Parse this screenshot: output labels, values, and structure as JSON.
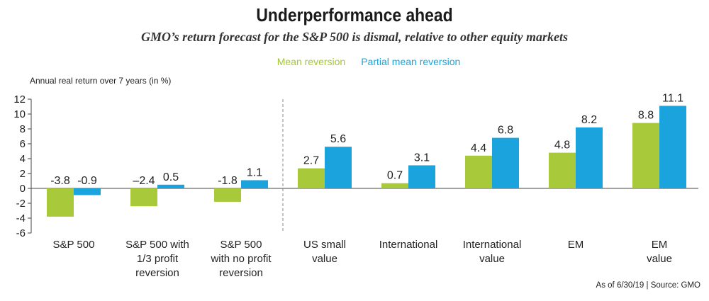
{
  "title": "Underperformance ahead",
  "subtitle": "GMO’s return forecast for the S&P 500 is dismal, relative to other equity markets",
  "legend": {
    "series1": "Mean reversion",
    "series2": "Partial mean reversion"
  },
  "ylabel": "Annual real return over 7 years (in %)",
  "footer": "As of 6/30/19 | Source: GMO",
  "colors": {
    "series1": "#a8c93a",
    "series2": "#1aa3dd",
    "axis": "#444444",
    "divider": "#888888"
  },
  "chart_data": {
    "type": "bar",
    "categories": [
      [
        "S&P 500"
      ],
      [
        "S&P 500 with",
        "1/3 profit",
        "reversion"
      ],
      [
        "S&P 500",
        "with no profit",
        "reversion"
      ],
      [
        "US small",
        "value"
      ],
      [
        "International"
      ],
      [
        "International",
        "value"
      ],
      [
        "EM"
      ],
      [
        "EM",
        "value"
      ]
    ],
    "series": [
      {
        "name": "Mean reversion",
        "values": [
          -3.8,
          -2.4,
          -1.8,
          2.7,
          0.7,
          4.4,
          4.8,
          8.8
        ],
        "labels": [
          "-3.8",
          "–2.4",
          "-1.8",
          "2.7",
          "0.7",
          "4.4",
          "4.8",
          "8.8"
        ]
      },
      {
        "name": "Partial mean reversion",
        "values": [
          -0.9,
          0.5,
          1.1,
          5.6,
          3.1,
          6.8,
          8.2,
          11.1
        ],
        "labels": [
          "-0.9",
          "0.5",
          "1.1",
          "5.6",
          "3.1",
          "6.8",
          "8.2",
          "11.1"
        ]
      }
    ],
    "ylim": [
      -6,
      12
    ],
    "yticks": [
      "12",
      "10",
      "8",
      "6",
      "4",
      "2",
      "0",
      "-2",
      "-4",
      "-6"
    ],
    "ytick_values": [
      12,
      10,
      8,
      6,
      4,
      2,
      0,
      -2,
      -4,
      -6
    ],
    "divider_after_category": 3
  }
}
